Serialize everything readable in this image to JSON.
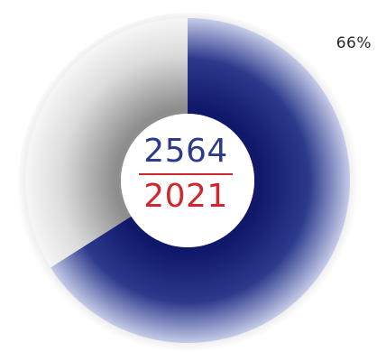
{
  "chart_data": {
    "type": "pie",
    "donut": true,
    "title": "",
    "slices": [
      {
        "label": "",
        "value": 66,
        "color": "#2c3a8c"
      },
      {
        "label": "",
        "value": 34,
        "color": "#e2e2e2"
      }
    ],
    "value_label": "66%",
    "center_text": {
      "top": "2564",
      "bottom": "2021"
    },
    "colors": {
      "primary": "#2c3a8c",
      "remainder": "#e2e2e2",
      "accent": "#d1262e"
    }
  }
}
